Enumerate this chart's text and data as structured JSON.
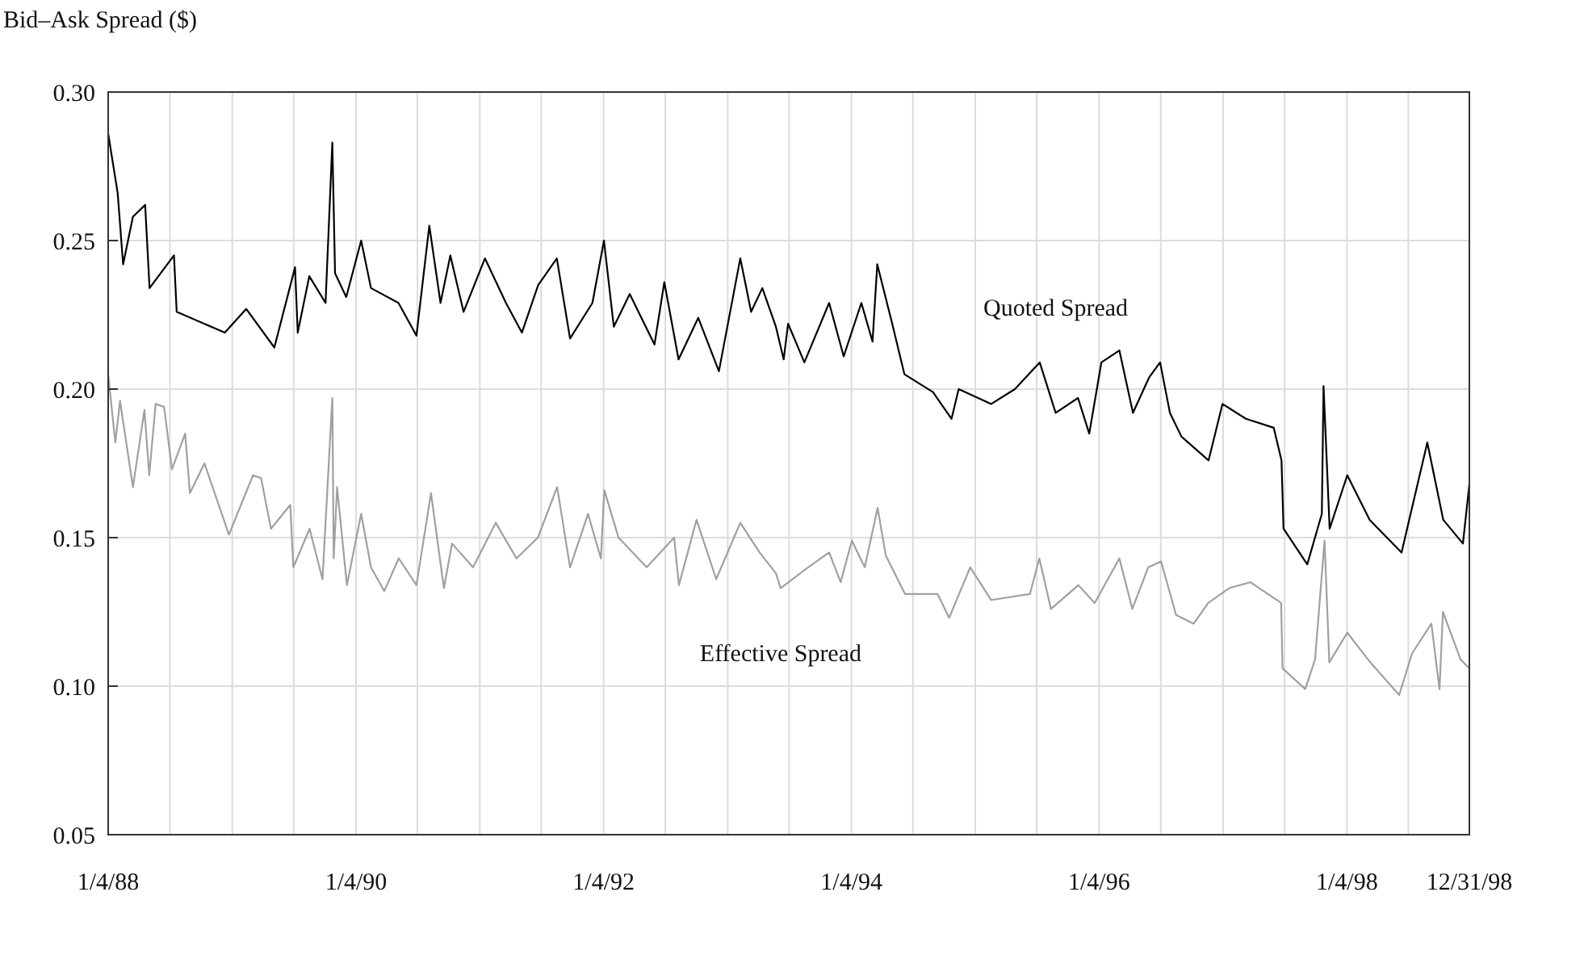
{
  "chart_data": {
    "type": "line",
    "ylabel": "Bid–Ask Spread ($)",
    "xlim": [
      "1988-01-04",
      "1998-12-31"
    ],
    "xticks": [
      {
        "value": "1988-01-04",
        "label": "1/4/88"
      },
      {
        "value": "1988-07-04",
        "label": null
      },
      {
        "value": "1989-01-04",
        "label": null
      },
      {
        "value": "1989-07-04",
        "label": null
      },
      {
        "value": "1990-01-04",
        "label": "1/4/90"
      },
      {
        "value": "1990-07-04",
        "label": null
      },
      {
        "value": "1991-01-04",
        "label": null
      },
      {
        "value": "1991-07-04",
        "label": null
      },
      {
        "value": "1992-01-04",
        "label": "1/4/92"
      },
      {
        "value": "1992-07-04",
        "label": null
      },
      {
        "value": "1993-01-04",
        "label": null
      },
      {
        "value": "1993-07-04",
        "label": null
      },
      {
        "value": "1994-01-04",
        "label": "1/4/94"
      },
      {
        "value": "1994-07-04",
        "label": null
      },
      {
        "value": "1995-01-04",
        "label": null
      },
      {
        "value": "1995-07-04",
        "label": null
      },
      {
        "value": "1996-01-04",
        "label": "1/4/96"
      },
      {
        "value": "1996-07-04",
        "label": null
      },
      {
        "value": "1997-01-04",
        "label": null
      },
      {
        "value": "1997-07-04",
        "label": null
      },
      {
        "value": "1998-01-04",
        "label": "1/4/98"
      },
      {
        "value": "1998-07-04",
        "label": null
      },
      {
        "value": "1998-12-31",
        "label": "12/31/98"
      }
    ],
    "ylim": [
      0.05,
      0.3
    ],
    "yticks": [
      {
        "value": 0.05,
        "label": "0.05"
      },
      {
        "value": 0.1,
        "label": "0.10"
      },
      {
        "value": 0.15,
        "label": "0.15"
      },
      {
        "value": 0.2,
        "label": "0.20"
      },
      {
        "value": 0.25,
        "label": "0.25"
      },
      {
        "value": 0.3,
        "label": "0.30"
      }
    ],
    "grid": true,
    "marker": "none",
    "line_style": "solid",
    "series": [
      {
        "name": "Quoted Spread",
        "color": "#000000",
        "x": [
          "1988-01-04",
          "1988-02-01",
          "1988-02-17",
          "1988-03-17",
          "1988-04-22",
          "1988-05-05",
          "1988-07-16",
          "1988-07-24",
          "1988-12-13",
          "1989-02-14",
          "1989-05-08",
          "1989-07-08",
          "1989-07-16",
          "1989-08-19",
          "1989-10-06",
          "1989-10-26",
          "1989-11-03",
          "1989-12-06",
          "1990-01-19",
          "1990-02-17",
          "1990-05-09",
          "1990-07-01",
          "1990-08-08",
          "1990-09-10",
          "1990-10-09",
          "1990-11-17",
          "1991-01-19",
          "1991-03-22",
          "1991-05-08",
          "1991-06-25",
          "1991-08-19",
          "1991-09-27",
          "1991-12-02",
          "1992-01-05",
          "1992-02-03",
          "1992-03-21",
          "1992-06-02",
          "1992-07-01",
          "1992-08-12",
          "1992-10-09",
          "1992-12-09",
          "1993-02-10",
          "1993-03-14",
          "1993-04-16",
          "1993-05-26",
          "1993-06-18",
          "1993-07-01",
          "1993-08-18",
          "1993-10-30",
          "1993-12-12",
          "1994-02-02",
          "1994-03-07",
          "1994-03-21",
          "1994-05-04",
          "1994-06-09",
          "1994-09-01",
          "1994-10-26",
          "1994-11-16",
          "1995-02-20",
          "1995-05-01",
          "1995-07-13",
          "1995-08-29",
          "1995-11-03",
          "1995-12-06",
          "1996-01-11",
          "1996-03-04",
          "1996-04-13",
          "1996-05-31",
          "1996-07-02",
          "1996-07-31",
          "1996-09-03",
          "1996-11-22",
          "1997-01-02",
          "1997-03-12",
          "1997-06-02",
          "1997-06-25",
          "1997-07-01",
          "1997-09-09",
          "1997-10-22",
          "1997-10-27",
          "1997-11-14",
          "1998-01-05",
          "1998-03-12",
          "1998-06-14",
          "1998-08-29",
          "1998-10-15",
          "1998-12-12",
          "1998-12-31"
        ],
        "values": [
          0.286,
          0.266,
          0.242,
          0.258,
          0.262,
          0.234,
          0.245,
          0.226,
          0.219,
          0.227,
          0.214,
          0.241,
          0.219,
          0.238,
          0.229,
          0.283,
          0.239,
          0.231,
          0.25,
          0.234,
          0.229,
          0.218,
          0.255,
          0.229,
          0.245,
          0.226,
          0.244,
          0.229,
          0.219,
          0.235,
          0.244,
          0.217,
          0.229,
          0.25,
          0.221,
          0.232,
          0.215,
          0.236,
          0.21,
          0.224,
          0.206,
          0.244,
          0.226,
          0.234,
          0.221,
          0.21,
          0.222,
          0.209,
          0.229,
          0.211,
          0.229,
          0.216,
          0.242,
          0.222,
          0.205,
          0.199,
          0.19,
          0.2,
          0.195,
          0.2,
          0.209,
          0.192,
          0.197,
          0.185,
          0.209,
          0.213,
          0.192,
          0.204,
          0.209,
          0.192,
          0.184,
          0.176,
          0.195,
          0.19,
          0.187,
          0.176,
          0.153,
          0.141,
          0.158,
          0.201,
          0.153,
          0.171,
          0.156,
          0.145,
          0.182,
          0.156,
          0.148,
          0.168
        ]
      },
      {
        "name": "Effective Spread",
        "color": "#a0a0a0",
        "x": [
          "1988-01-04",
          "1988-01-25",
          "1988-02-08",
          "1988-03-17",
          "1988-04-20",
          "1988-05-04",
          "1988-05-23",
          "1988-06-17",
          "1988-07-10",
          "1988-08-18",
          "1988-09-01",
          "1988-10-14",
          "1988-12-25",
          "1989-03-06",
          "1989-03-30",
          "1989-04-28",
          "1989-06-24",
          "1989-07-03",
          "1989-08-20",
          "1989-09-27",
          "1989-10-26",
          "1989-10-30",
          "1989-11-09",
          "1989-12-08",
          "1990-01-19",
          "1990-02-17",
          "1990-03-28",
          "1990-05-10",
          "1990-07-01",
          "1990-08-13",
          "1990-09-20",
          "1990-10-14",
          "1990-12-15",
          "1991-02-20",
          "1991-04-22",
          "1991-06-24",
          "1991-08-20",
          "1991-09-27",
          "1991-11-19",
          "1991-12-27",
          "1992-01-06",
          "1992-02-17",
          "1992-05-10",
          "1992-07-30",
          "1992-08-13",
          "1992-10-04",
          "1992-12-01",
          "1993-02-10",
          "1993-04-08",
          "1993-05-26",
          "1993-06-09",
          "1993-08-29",
          "1993-10-30",
          "1993-12-03",
          "1994-01-05",
          "1994-02-12",
          "1994-03-22",
          "1994-04-15",
          "1994-06-11",
          "1994-09-15",
          "1994-10-19",
          "1994-12-20",
          "1995-02-20",
          "1995-06-14",
          "1995-07-12",
          "1995-08-15",
          "1995-11-04",
          "1995-12-22",
          "1996-03-04",
          "1996-04-11",
          "1996-05-28",
          "1996-07-05",
          "1996-08-18",
          "1996-10-09",
          "1996-11-21",
          "1997-01-22",
          "1997-03-25",
          "1997-06-24",
          "1997-06-28",
          "1997-09-03",
          "1997-10-02",
          "1997-10-30",
          "1997-11-13",
          "1998-01-05",
          "1998-03-14",
          "1998-06-07",
          "1998-07-15",
          "1998-09-10",
          "1998-10-04",
          "1998-10-14",
          "1998-12-05",
          "1998-12-31"
        ],
        "values": [
          0.205,
          0.182,
          0.196,
          0.167,
          0.193,
          0.171,
          0.195,
          0.194,
          0.173,
          0.185,
          0.165,
          0.175,
          0.151,
          0.171,
          0.17,
          0.153,
          0.161,
          0.14,
          0.153,
          0.136,
          0.197,
          0.143,
          0.167,
          0.134,
          0.158,
          0.14,
          0.132,
          0.143,
          0.134,
          0.165,
          0.133,
          0.148,
          0.14,
          0.155,
          0.143,
          0.15,
          0.167,
          0.14,
          0.158,
          0.143,
          0.166,
          0.15,
          0.14,
          0.15,
          0.134,
          0.156,
          0.136,
          0.155,
          0.145,
          0.138,
          0.133,
          0.14,
          0.145,
          0.135,
          0.149,
          0.14,
          0.16,
          0.144,
          0.131,
          0.131,
          0.123,
          0.14,
          0.129,
          0.131,
          0.143,
          0.126,
          0.134,
          0.128,
          0.143,
          0.126,
          0.14,
          0.142,
          0.124,
          0.121,
          0.128,
          0.133,
          0.135,
          0.128,
          0.106,
          0.099,
          0.109,
          0.149,
          0.108,
          0.118,
          0.108,
          0.097,
          0.111,
          0.121,
          0.099,
          0.125,
          0.109,
          0.106
        ]
      }
    ]
  }
}
